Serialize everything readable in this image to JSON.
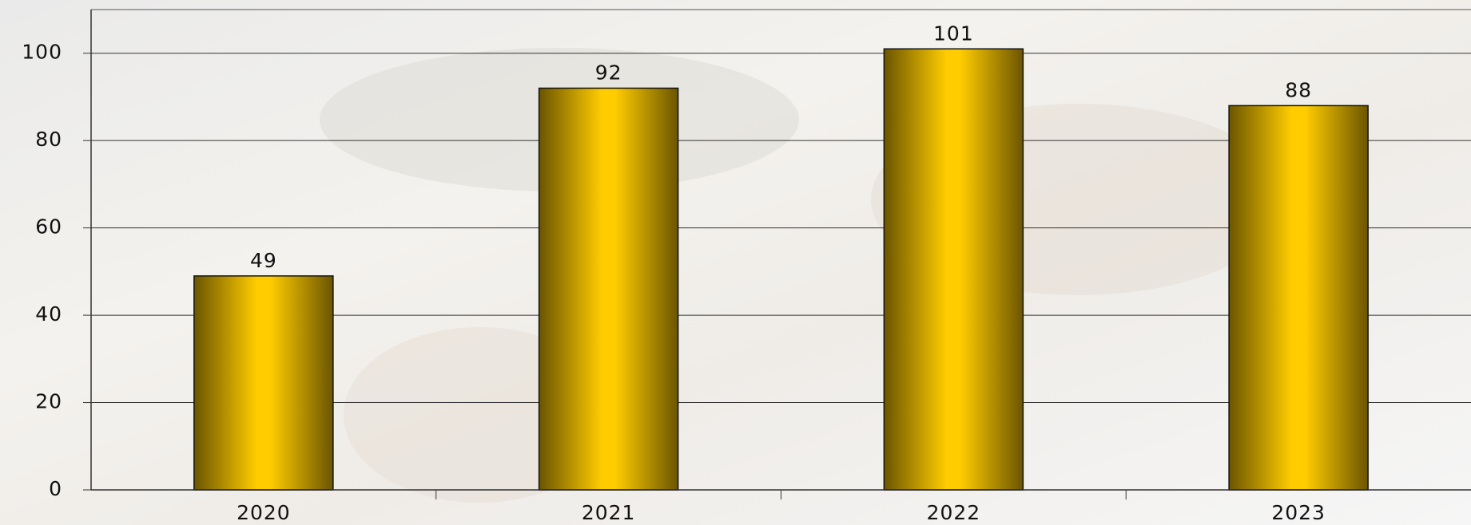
{
  "chart_data": {
    "type": "bar",
    "categories": [
      "2020",
      "2021",
      "2022",
      "2023"
    ],
    "values": [
      49,
      92,
      101,
      88
    ],
    "color": "#ffcc00",
    "ylim": [
      0,
      110
    ],
    "yticks": [
      0,
      20,
      40,
      60,
      80,
      100
    ],
    "grid": true
  }
}
